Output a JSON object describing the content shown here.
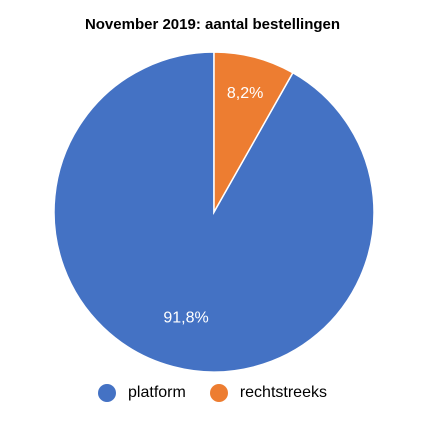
{
  "chart_data": {
    "type": "pie",
    "title": "November 2019: aantal bestellingen",
    "categories": [
      "platform",
      "rechtstreeks"
    ],
    "values": [
      91.8,
      8.2
    ],
    "labels": [
      "91,8%",
      "8,2%"
    ],
    "colors": [
      "#4472C4",
      "#ED7D31"
    ],
    "legend": "bottom"
  }
}
